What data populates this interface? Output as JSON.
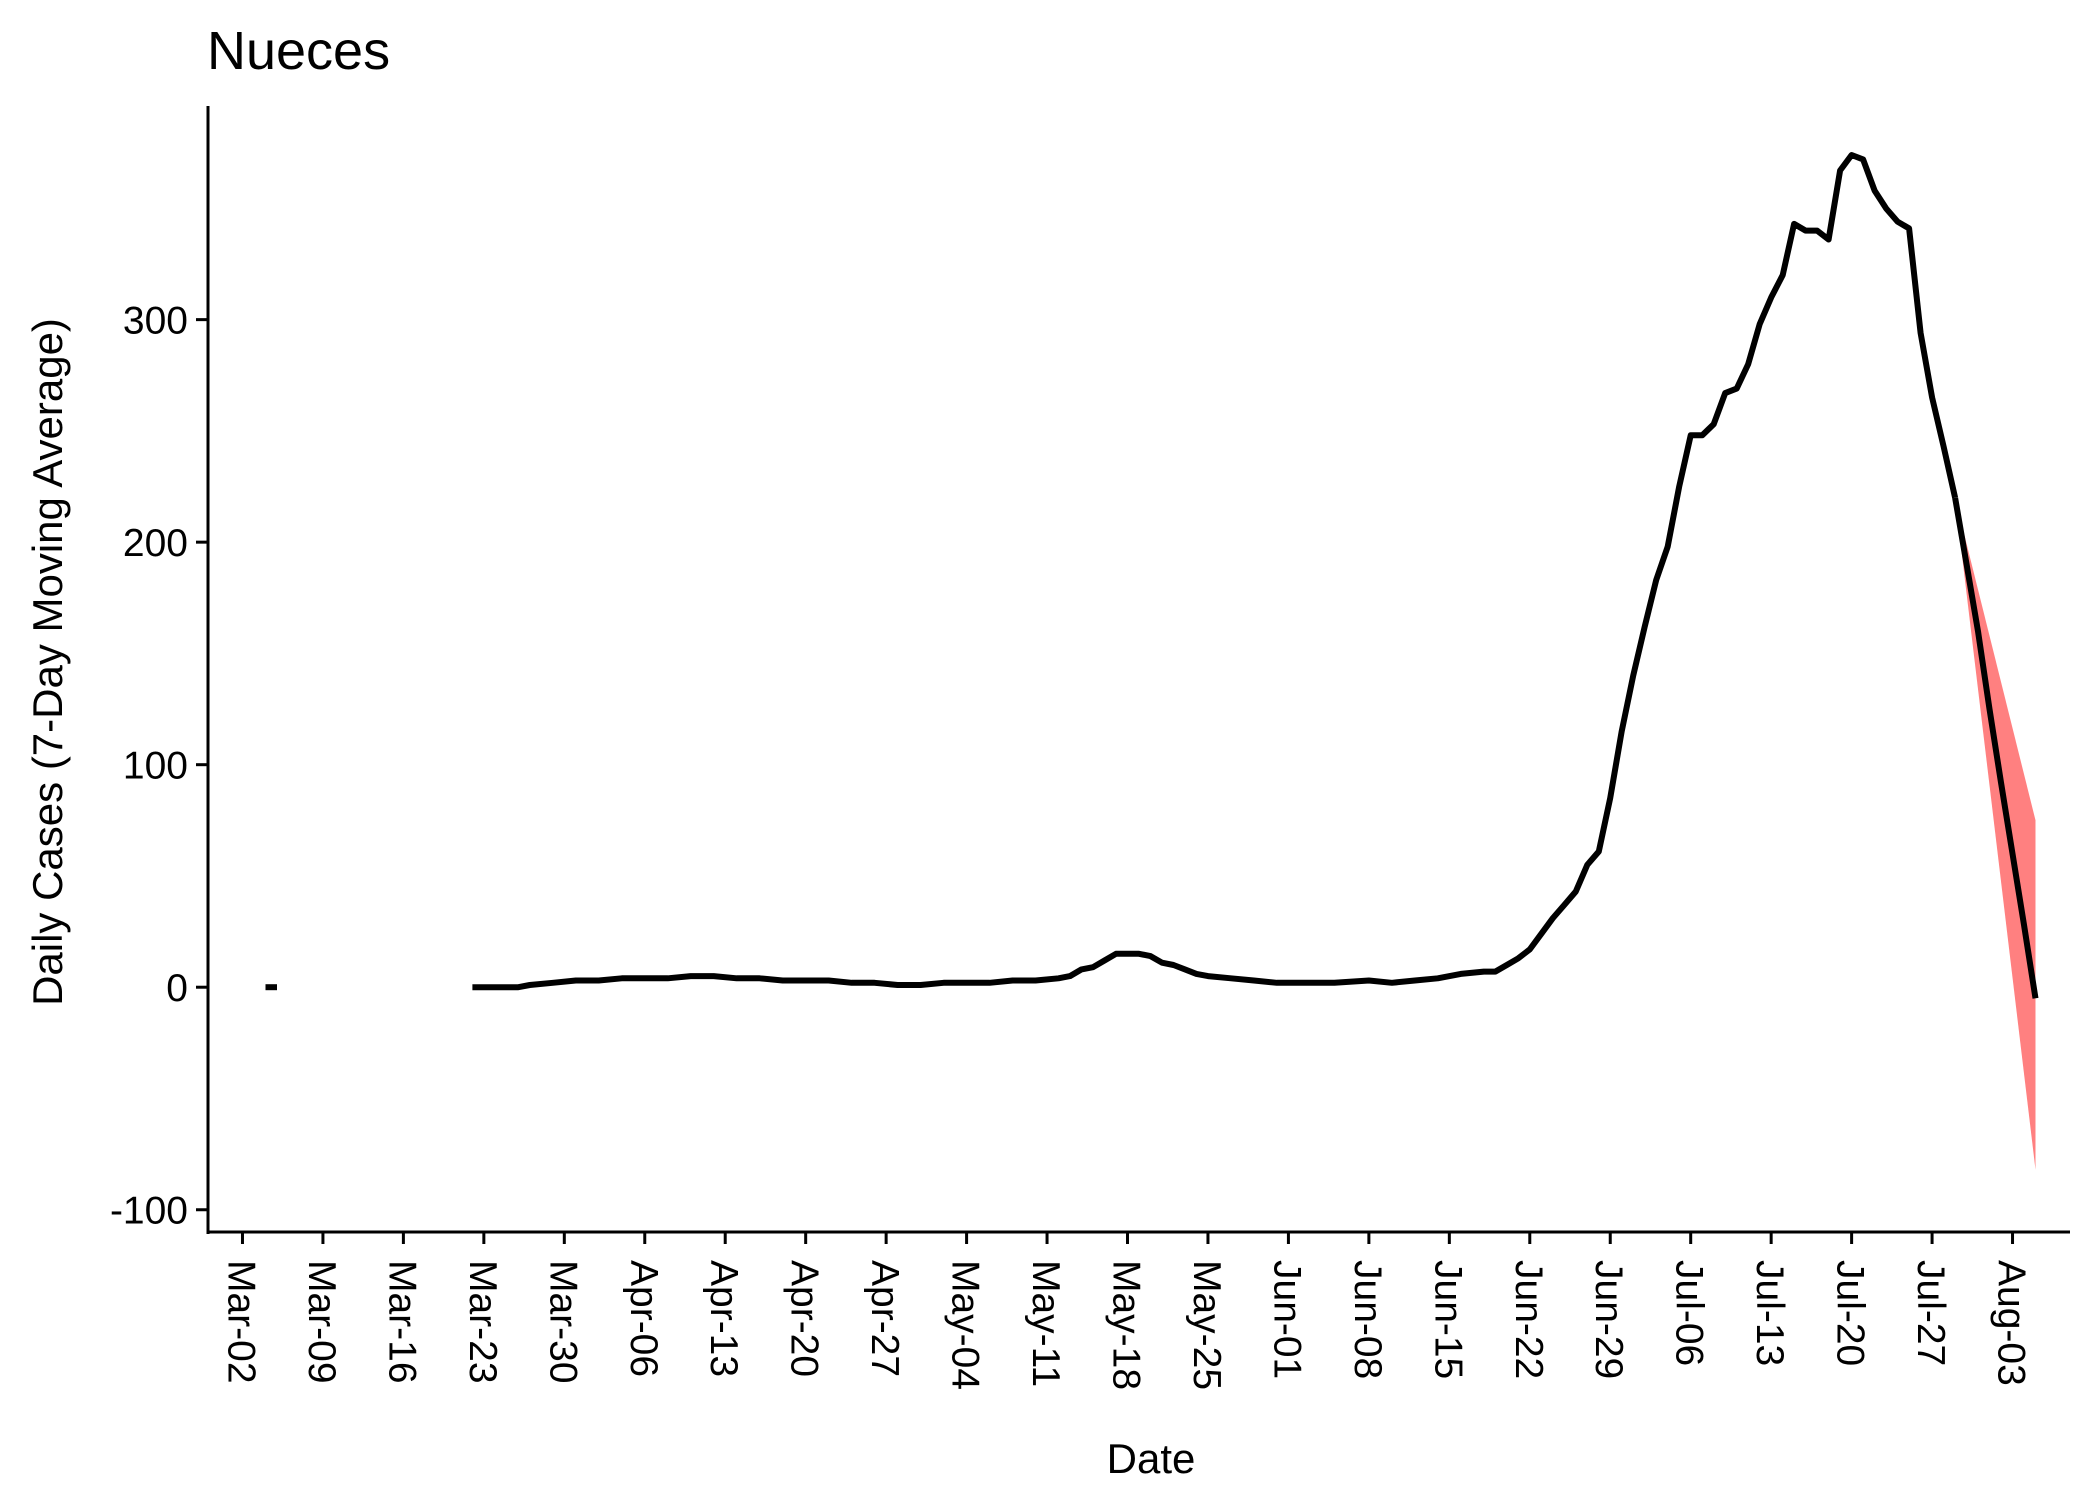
{
  "chart_data": {
    "type": "line",
    "title": "Nueces",
    "xlabel": "Date",
    "ylabel": "Daily Cases (7-Day Moving Average)",
    "year": 2020,
    "xlim": [
      "2020-02-28",
      "2020-08-08"
    ],
    "ylim": [
      -110,
      396
    ],
    "x_ticks": [
      "Mar-02",
      "Mar-09",
      "Mar-16",
      "Mar-23",
      "Mar-30",
      "Apr-06",
      "Apr-13",
      "Apr-20",
      "Apr-27",
      "May-04",
      "May-11",
      "May-18",
      "May-25",
      "Jun-01",
      "Jun-08",
      "Jun-15",
      "Jun-22",
      "Jun-29",
      "Jul-06",
      "Jul-13",
      "Jul-20",
      "Jul-27",
      "Aug-03"
    ],
    "y_ticks": [
      -100,
      0,
      100,
      200,
      300
    ],
    "grid": false,
    "legend": "none",
    "series": [
      {
        "color": "#000000",
        "segments": [
          [
            [
              "2020-03-04",
              0
            ],
            [
              "2020-03-05",
              0
            ]
          ],
          [
            [
              "2020-03-22",
              0
            ],
            [
              "2020-03-24",
              0
            ],
            [
              "2020-03-26",
              0
            ],
            [
              "2020-03-27",
              1
            ],
            [
              "2020-03-29",
              2
            ],
            [
              "2020-03-31",
              3
            ],
            [
              "2020-04-02",
              3
            ],
            [
              "2020-04-04",
              4
            ],
            [
              "2020-04-06",
              4
            ],
            [
              "2020-04-08",
              4
            ],
            [
              "2020-04-10",
              5
            ],
            [
              "2020-04-12",
              5
            ],
            [
              "2020-04-14",
              4
            ],
            [
              "2020-04-16",
              4
            ],
            [
              "2020-04-18",
              3
            ],
            [
              "2020-04-20",
              3
            ],
            [
              "2020-04-22",
              3
            ],
            [
              "2020-04-24",
              2
            ],
            [
              "2020-04-26",
              2
            ],
            [
              "2020-04-28",
              1
            ],
            [
              "2020-04-30",
              1
            ],
            [
              "2020-05-02",
              2
            ],
            [
              "2020-05-04",
              2
            ],
            [
              "2020-05-06",
              2
            ],
            [
              "2020-05-08",
              3
            ],
            [
              "2020-05-10",
              3
            ],
            [
              "2020-05-12",
              4
            ],
            [
              "2020-05-13",
              5
            ],
            [
              "2020-05-14",
              8
            ],
            [
              "2020-05-15",
              9
            ],
            [
              "2020-05-16",
              12
            ],
            [
              "2020-05-17",
              15
            ],
            [
              "2020-05-18",
              15
            ],
            [
              "2020-05-19",
              15
            ],
            [
              "2020-05-20",
              14
            ],
            [
              "2020-05-21",
              11
            ],
            [
              "2020-05-22",
              10
            ],
            [
              "2020-05-23",
              8
            ],
            [
              "2020-05-24",
              6
            ],
            [
              "2020-05-25",
              5
            ],
            [
              "2020-05-27",
              4
            ],
            [
              "2020-05-29",
              3
            ],
            [
              "2020-05-31",
              2
            ],
            [
              "2020-06-02",
              2
            ],
            [
              "2020-06-05",
              2
            ],
            [
              "2020-06-08",
              3
            ],
            [
              "2020-06-10",
              2
            ],
            [
              "2020-06-12",
              3
            ],
            [
              "2020-06-14",
              4
            ],
            [
              "2020-06-16",
              6
            ],
            [
              "2020-06-18",
              7
            ],
            [
              "2020-06-19",
              7
            ],
            [
              "2020-06-20",
              10
            ],
            [
              "2020-06-21",
              13
            ],
            [
              "2020-06-22",
              17
            ],
            [
              "2020-06-23",
              24
            ],
            [
              "2020-06-24",
              31
            ],
            [
              "2020-06-25",
              37
            ],
            [
              "2020-06-26",
              43
            ],
            [
              "2020-06-27",
              55
            ],
            [
              "2020-06-28",
              61
            ],
            [
              "2020-06-29",
              85
            ],
            [
              "2020-06-30",
              115
            ],
            [
              "2020-07-01",
              140
            ],
            [
              "2020-07-02",
              162
            ],
            [
              "2020-07-03",
              183
            ],
            [
              "2020-07-04",
              198
            ],
            [
              "2020-07-05",
              225
            ],
            [
              "2020-07-06",
              248
            ],
            [
              "2020-07-07",
              248
            ],
            [
              "2020-07-08",
              253
            ],
            [
              "2020-07-09",
              267
            ],
            [
              "2020-07-10",
              269
            ],
            [
              "2020-07-11",
              280
            ],
            [
              "2020-07-12",
              298
            ],
            [
              "2020-07-13",
              310
            ],
            [
              "2020-07-14",
              320
            ],
            [
              "2020-07-15",
              343
            ],
            [
              "2020-07-16",
              340
            ],
            [
              "2020-07-17",
              340
            ],
            [
              "2020-07-18",
              336
            ],
            [
              "2020-07-19",
              367
            ],
            [
              "2020-07-20",
              374
            ],
            [
              "2020-07-21",
              372
            ],
            [
              "2020-07-22",
              358
            ],
            [
              "2020-07-23",
              350
            ],
            [
              "2020-07-24",
              344
            ],
            [
              "2020-07-25",
              341
            ],
            [
              "2020-07-26",
              294
            ],
            [
              "2020-07-27",
              265
            ],
            [
              "2020-07-28",
              243
            ],
            [
              "2020-07-29",
              220
            ]
          ]
        ]
      },
      {
        "color": "#000000",
        "values": [
          [
            "2020-07-29",
            220
          ],
          [
            "2020-07-30",
            190
          ],
          [
            "2020-07-31",
            160
          ],
          [
            "2020-08-01",
            125
          ],
          [
            "2020-08-02",
            92
          ],
          [
            "2020-08-03",
            60
          ],
          [
            "2020-08-04",
            28
          ],
          [
            "2020-08-05",
            -5
          ]
        ]
      }
    ],
    "ribbon": {
      "color": "#ff8080",
      "points": [
        [
          "2020-07-29",
          220,
          220
        ],
        [
          "2020-08-05",
          -82,
          75
        ]
      ]
    }
  }
}
